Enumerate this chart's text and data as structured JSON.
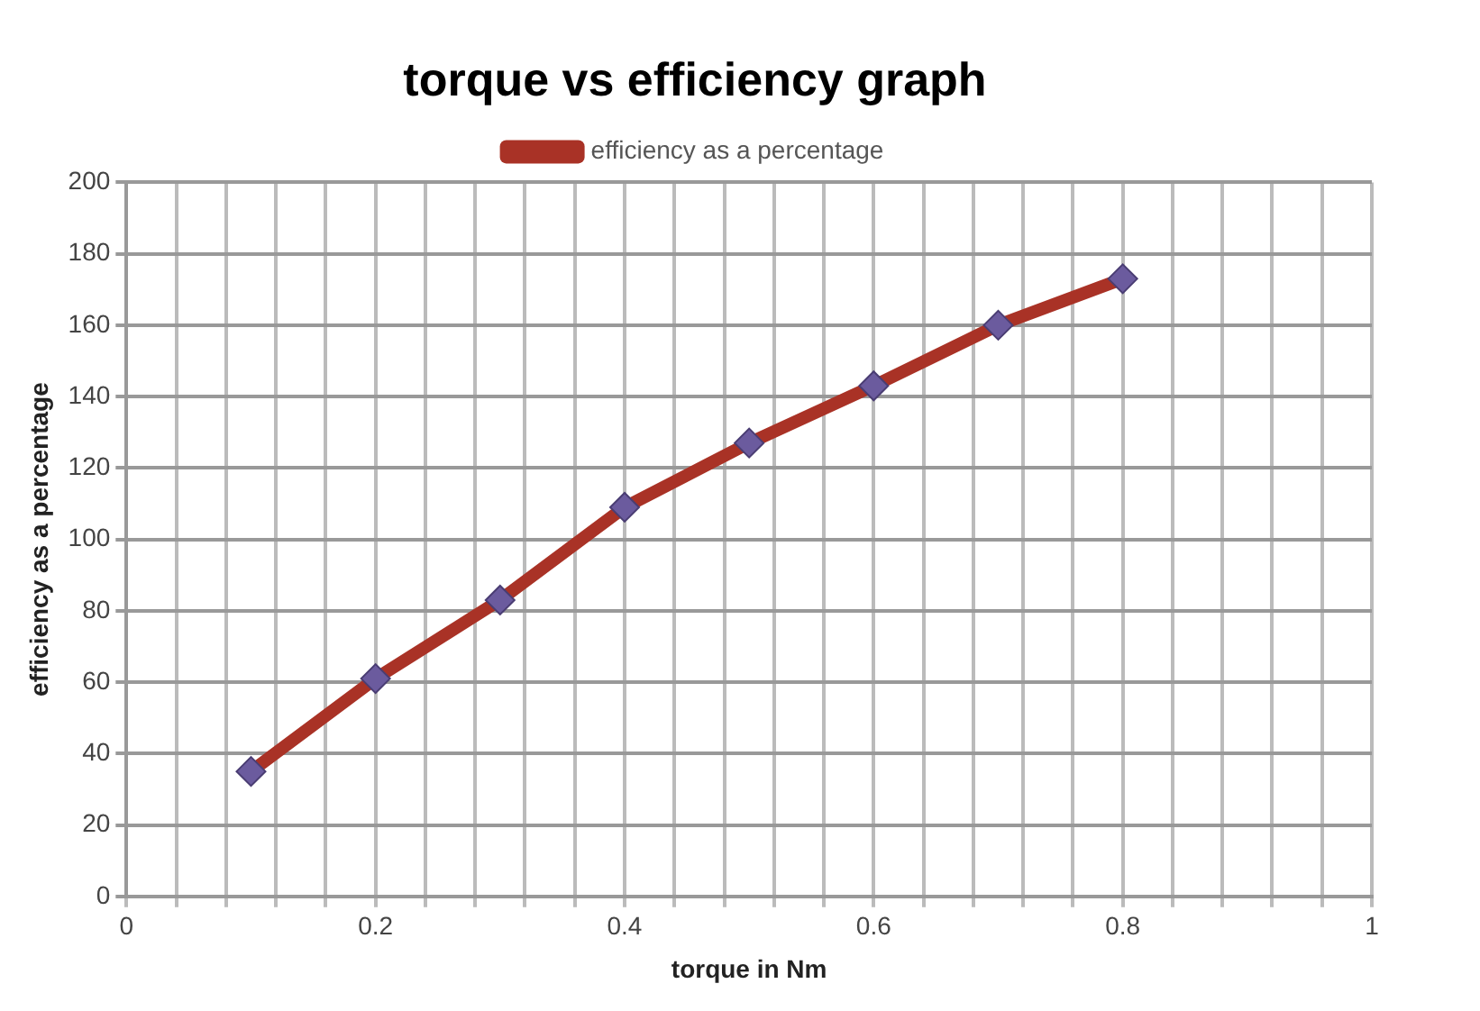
{
  "chart_data": {
    "type": "line",
    "title": "torque vs efficiency graph",
    "xlabel": "torque in Nm",
    "ylabel": "efficiency as a percentage",
    "x": [
      0.1,
      0.2,
      0.3,
      0.4,
      0.5,
      0.6,
      0.7,
      0.8
    ],
    "series": [
      {
        "name": "efficiency as a percentage",
        "color": "#a93226",
        "values": [
          35,
          61,
          83,
          109,
          127,
          143,
          160,
          173
        ]
      }
    ],
    "xlim": [
      0,
      1
    ],
    "xticks": [
      0,
      {
        "value": 0.04,
        "label": null
      },
      {
        "value": 0.08,
        "label": null
      },
      {
        "value": 0.12,
        "label": null
      },
      {
        "value": 0.16,
        "label": null
      },
      0.2,
      {
        "value": 0.24,
        "label": null
      },
      {
        "value": 0.28,
        "label": null
      },
      {
        "value": 0.32,
        "label": null
      },
      {
        "value": 0.36,
        "label": null
      },
      0.4,
      {
        "value": 0.44,
        "label": null
      },
      {
        "value": 0.48,
        "label": null
      },
      {
        "value": 0.52,
        "label": null
      },
      {
        "value": 0.56,
        "label": null
      },
      0.6,
      {
        "value": 0.64,
        "label": null
      },
      {
        "value": 0.68,
        "label": null
      },
      {
        "value": 0.72,
        "label": null
      },
      {
        "value": 0.76,
        "label": null
      },
      0.8,
      {
        "value": 0.84,
        "label": null
      },
      {
        "value": 0.88,
        "label": null
      },
      {
        "value": 0.92,
        "label": null
      },
      {
        "value": 0.96,
        "label": null
      },
      1
    ],
    "ylim": [
      0,
      200
    ],
    "yticks": [
      0,
      20,
      40,
      60,
      80,
      100,
      120,
      140,
      160,
      180,
      200
    ],
    "grid": true,
    "legend": "top",
    "marker": "diamond",
    "line_style": "solid"
  }
}
